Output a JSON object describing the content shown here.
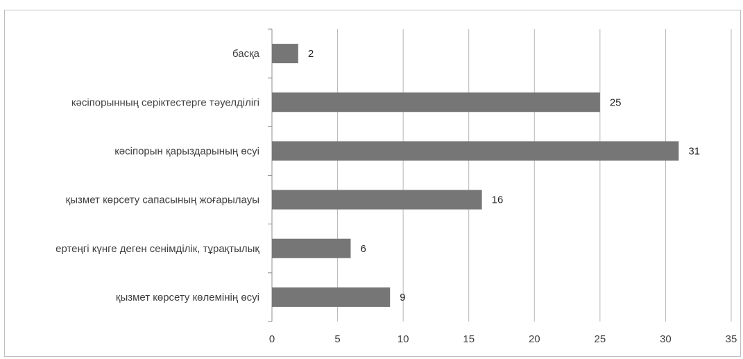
{
  "chart_data": {
    "type": "bar",
    "orientation": "horizontal",
    "categories": [
      "басқа",
      "кәсіпорынның серіктестерге тәуелділігі",
      "кәсіпорын қарыздарының өсуі",
      "қызмет көрсету сапасының жоғарылауы",
      "ертеңгі күнге деген сенімділік, тұрақтылық",
      "қызмет көрсету көлемінің өсуі"
    ],
    "values": [
      2,
      25,
      31,
      16,
      6,
      9
    ],
    "xlim": [
      0,
      35
    ],
    "xticks": [
      0,
      5,
      10,
      15,
      20,
      25,
      30,
      35
    ],
    "title": "",
    "xlabel": "",
    "ylabel": "",
    "grid": "vertical",
    "legend": "none",
    "colors": {
      "bar": "#767676",
      "grid": "#b7b7b7",
      "axis": "#8c8c8c"
    }
  }
}
